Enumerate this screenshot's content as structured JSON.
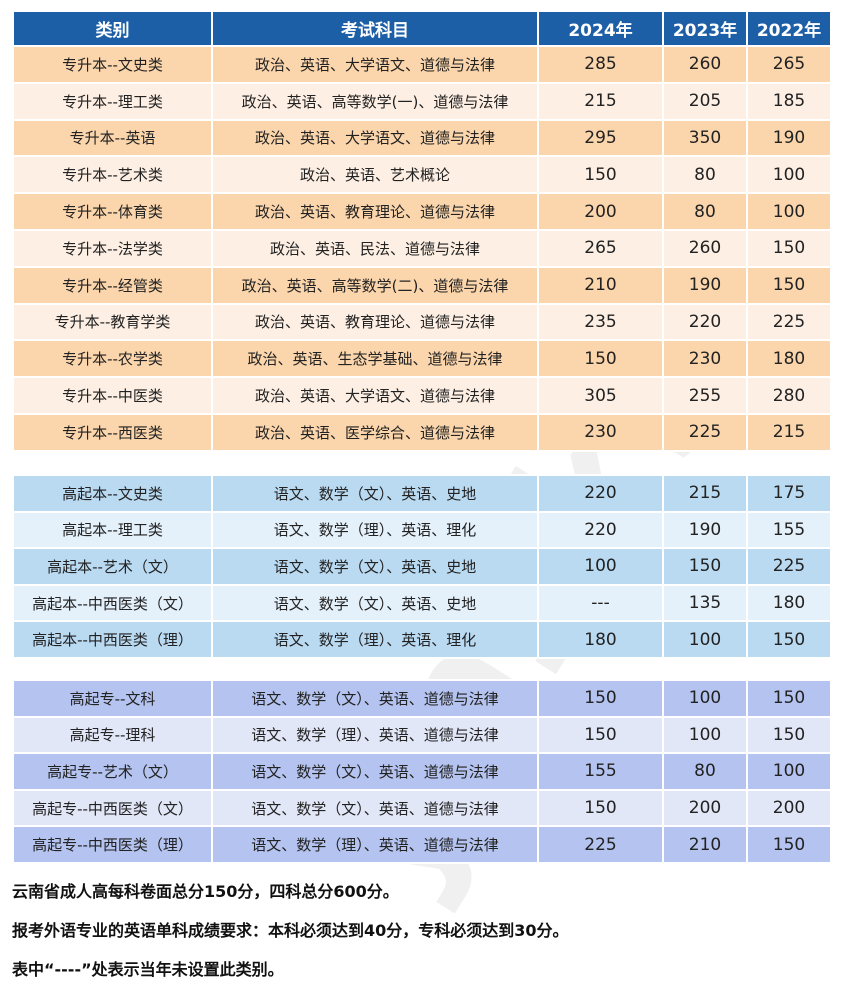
{
  "header": [
    "类别",
    "考试科目",
    "2024年",
    "2023年",
    "2022年"
  ],
  "sections": [
    {
      "rows": [
        [
          "专升本--文史类",
          "政治、英语、大学语文、道德与法律",
          "285",
          "260",
          "265"
        ],
        [
          "专升本--理工类",
          "政治、英语、高等数学(一)、道德与法律",
          "215",
          "205",
          "185"
        ],
        [
          "专升本--英语",
          "政治、英语、大学语文、道德与法律",
          "295",
          "350",
          "190"
        ],
        [
          "专升本--艺术类",
          "政治、英语、艺术概论",
          "150",
          "80",
          "100"
        ],
        [
          "专升本--体育类",
          "政治、英语、教育理论、道德与法律",
          "200",
          "80",
          "100"
        ],
        [
          "专升本--法学类",
          "政治、英语、民法、道德与法律",
          "265",
          "260",
          "150"
        ],
        [
          "专升本--经管类",
          "政治、英语、高等数学(二)、道德与法律",
          "210",
          "190",
          "150"
        ],
        [
          "专升本--教育学类",
          "政治、英语、教育理论、道德与法律",
          "235",
          "220",
          "225"
        ],
        [
          "专升本--农学类",
          "政治、英语、生态学基础、道德与法律",
          "150",
          "230",
          "180"
        ],
        [
          "专升本--中医类",
          "政治、英语、大学语文、道德与法律",
          "305",
          "255",
          "280"
        ],
        [
          "专升本--西医类",
          "政治、英语、医学综合、道德与法律",
          "230",
          "225",
          "215"
        ]
      ]
    },
    {
      "rows": [
        [
          "高起本--文史类",
          "语文、数学（文）、英语、史地",
          "220",
          "215",
          "175"
        ],
        [
          "高起本--理工类",
          "语文、数学（理）、英语、理化",
          "220",
          "190",
          "155"
        ],
        [
          "高起本--艺术（文）",
          "语文、数学（文）、英语、史地",
          "100",
          "150",
          "225"
        ],
        [
          "高起本--中西医类（文）",
          "语文、数学（文）、英语、史地",
          "---",
          "135",
          "180"
        ],
        [
          "高起本--中西医类（理）",
          "语文、数学（理）、英语、理化",
          "180",
          "100",
          "150"
        ]
      ]
    },
    {
      "rows": [
        [
          "高起专--文科",
          "语文、数学（文）、英语、道德与法律",
          "150",
          "100",
          "150"
        ],
        [
          "高起专--理科",
          "语文、数学（理）、英语、道德与法律",
          "150",
          "100",
          "150"
        ],
        [
          "高起专--艺术（文）",
          "语文、数学（文）、英语、道德与法律",
          "155",
          "80",
          "100"
        ],
        [
          "高起专--中西医类（文）",
          "语文、数学（文）、英语、道德与法律",
          "150",
          "200",
          "200"
        ],
        [
          "高起专--中西医类（理）",
          "语文、数学（理）、英语、道德与法律",
          "225",
          "210",
          "150"
        ]
      ]
    }
  ],
  "notes": [
    "云南省成人高每科卷面总分150分，四科总分600分。",
    "报考外语专业的英语单科成绩要求：本科必须达到40分，专科必须达到30分。",
    "表中“----”处表示当年未设置此类别。"
  ],
  "watermark": "ynzk58",
  "colors": {
    "header": "#1d5fa6",
    "section1": "#fbd5ab",
    "section2": "#badaf2",
    "section3": "#b4c3ef"
  }
}
